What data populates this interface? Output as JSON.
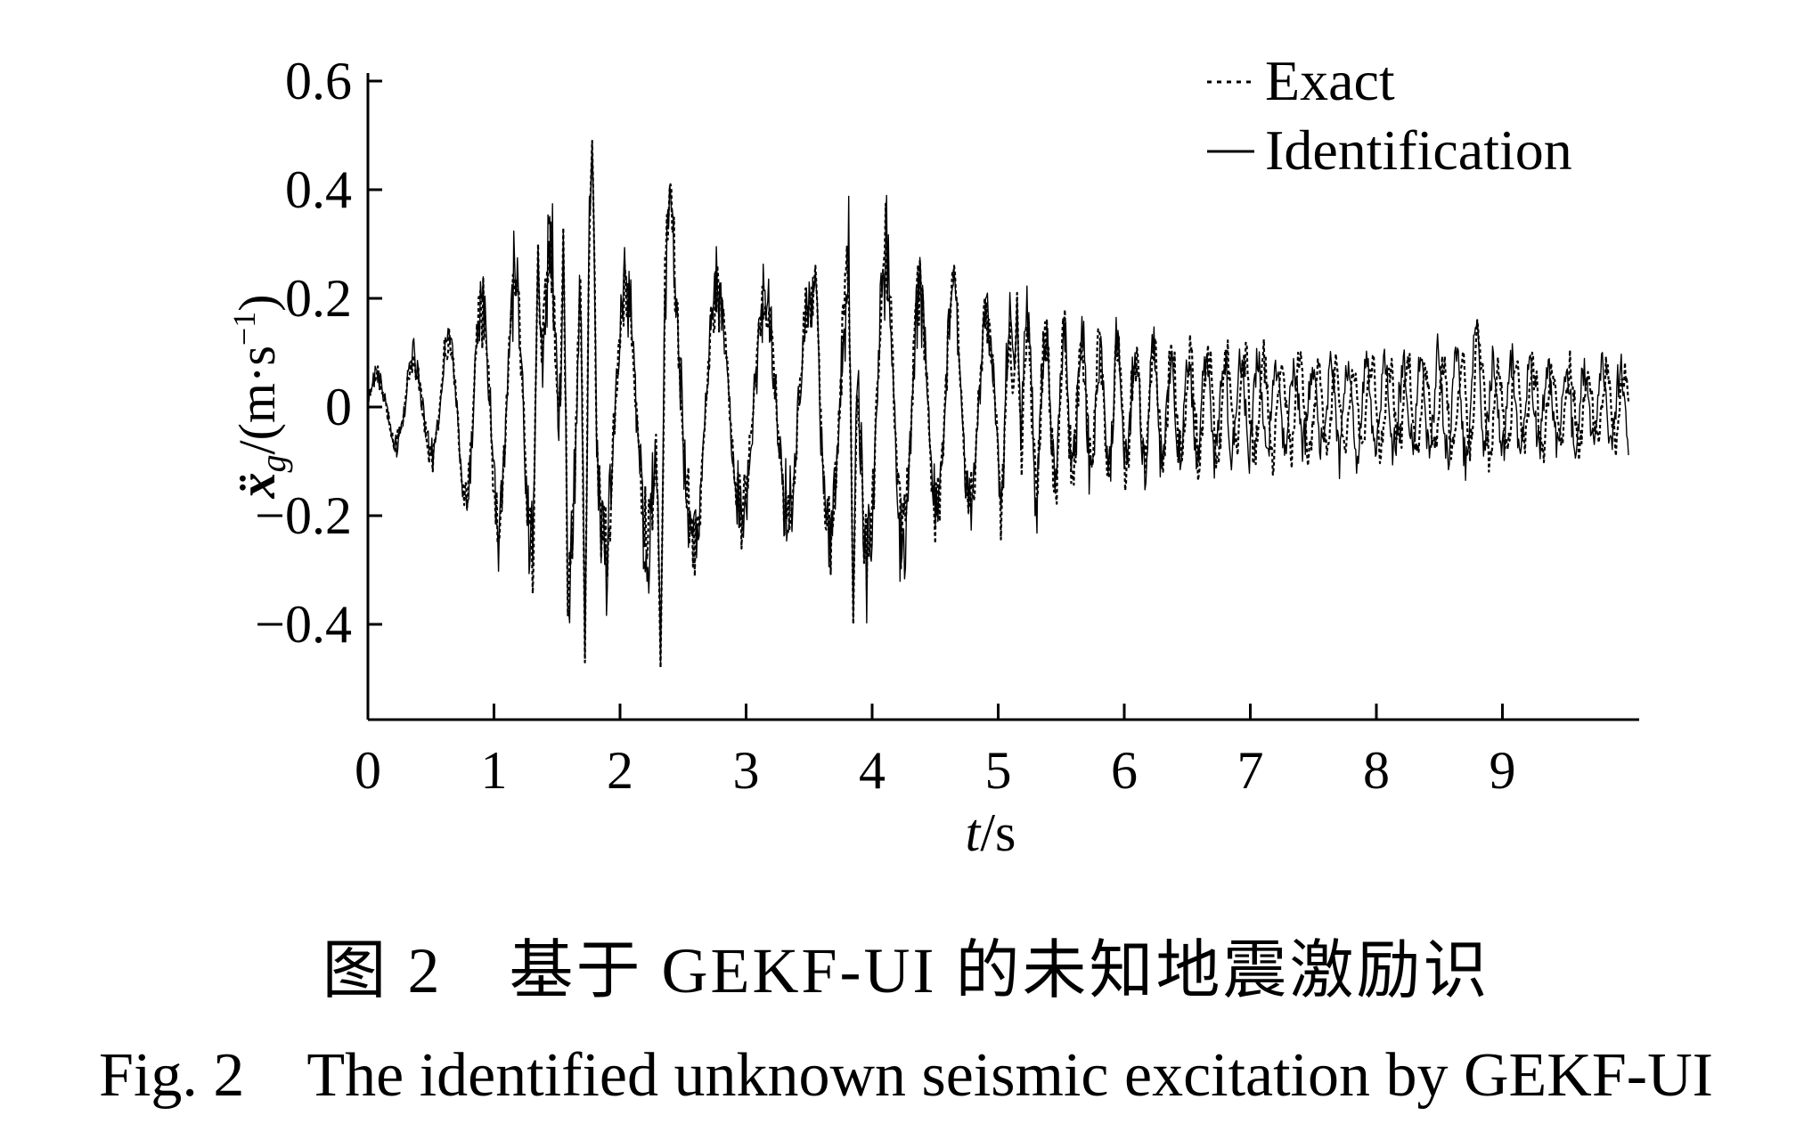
{
  "chart_data": {
    "type": "line",
    "x_range": [
      0,
      10
    ],
    "xlim": [
      0,
      10
    ],
    "ylim": [
      -0.57,
      0.6
    ],
    "x_ticks": [
      "0",
      "1",
      "2",
      "3",
      "4",
      "5",
      "6",
      "7",
      "8",
      "9"
    ],
    "y_ticks": [
      "0.6",
      "0.4",
      "0.2",
      "0",
      "−0.2",
      "−0.4"
    ],
    "xlabel_var": "t",
    "xlabel_unit": "/s",
    "ylabel_var": "ẍ",
    "ylabel_sub": "g",
    "ylabel_unit_pre": "/(m·s",
    "ylabel_unit_sup": "−1",
    "ylabel_unit_post": ")",
    "grid": false,
    "legend_position": "top-right",
    "legend": [
      "Exact",
      "Identification"
    ],
    "series": [
      {
        "name": "Exact",
        "style": "dotted",
        "envelope": [
          [
            0.0,
            0.07
          ],
          [
            0.5,
            0.12
          ],
          [
            0.8,
            0.22
          ],
          [
            1.3,
            0.32
          ],
          [
            1.7,
            0.48
          ],
          [
            2.0,
            0.25
          ],
          [
            2.4,
            0.4
          ],
          [
            2.8,
            0.25
          ],
          [
            3.5,
            0.25
          ],
          [
            3.9,
            0.38
          ],
          [
            4.5,
            0.26
          ],
          [
            5.1,
            0.2
          ],
          [
            5.8,
            0.15
          ],
          [
            6.5,
            0.12
          ],
          [
            7.5,
            0.1
          ],
          [
            8.7,
            0.11
          ],
          [
            10.0,
            0.08
          ]
        ],
        "peaks": [
          [
            1.78,
            0.49
          ],
          [
            2.4,
            0.41
          ],
          [
            1.72,
            -0.47
          ],
          [
            2.32,
            -0.48
          ],
          [
            3.85,
            -0.4
          ],
          [
            3.55,
            0.26
          ],
          [
            4.65,
            0.26
          ],
          [
            5.15,
            0.21
          ],
          [
            8.8,
            0.16
          ],
          [
            1.35,
            0.3
          ],
          [
            1.55,
            0.33
          ]
        ]
      },
      {
        "name": "Identification",
        "style": "solid",
        "envelope": [
          [
            0.0,
            0.07
          ],
          [
            0.5,
            0.12
          ],
          [
            0.8,
            0.22
          ],
          [
            1.3,
            0.32
          ],
          [
            1.7,
            0.48
          ],
          [
            2.0,
            0.25
          ],
          [
            2.4,
            0.4
          ],
          [
            2.8,
            0.25
          ],
          [
            3.5,
            0.25
          ],
          [
            3.9,
            0.38
          ],
          [
            4.5,
            0.26
          ],
          [
            5.1,
            0.2
          ],
          [
            5.8,
            0.15
          ],
          [
            6.5,
            0.12
          ],
          [
            7.5,
            0.1
          ],
          [
            8.7,
            0.11
          ],
          [
            10.0,
            0.08
          ]
        ],
        "peaks": [
          [
            1.78,
            0.48
          ],
          [
            2.4,
            0.4
          ],
          [
            1.72,
            -0.46
          ],
          [
            2.32,
            -0.47
          ],
          [
            3.85,
            -0.39
          ],
          [
            3.55,
            0.25
          ],
          [
            4.65,
            0.25
          ],
          [
            5.15,
            0.2
          ],
          [
            8.8,
            0.16
          ],
          [
            1.35,
            0.29
          ],
          [
            1.55,
            0.32
          ]
        ]
      }
    ]
  },
  "caption": {
    "cn": "图 2　基于 GEKF-UI 的未知地震激励识",
    "en": "Fig. 2　The identified unknown seismic excitation by GEKF-UI"
  }
}
